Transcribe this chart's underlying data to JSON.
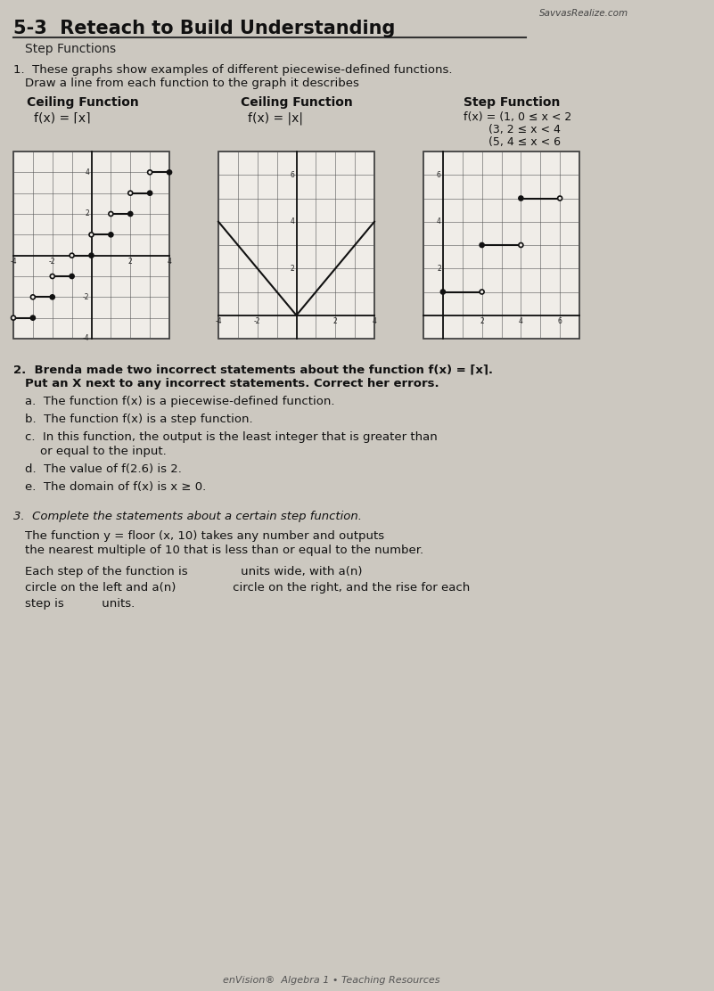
{
  "bg_color": "#ccc8c0",
  "title": "5-3  Reteach to Build Understanding",
  "subtitle": "Step Functions",
  "brand": "SavvasRealize.com",
  "footer": "enVision®  Algebra 1 • Teaching Resources"
}
